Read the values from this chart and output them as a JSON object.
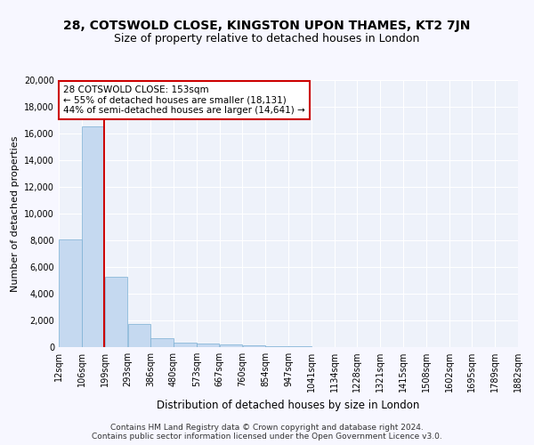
{
  "title": "28, COTSWOLD CLOSE, KINGSTON UPON THAMES, KT2 7JN",
  "subtitle": "Size of property relative to detached houses in London",
  "xlabel": "Distribution of detached houses by size in London",
  "ylabel": "Number of detached properties",
  "bar_color": "#c5d9f0",
  "bar_edge_color": "#7bafd4",
  "bar_values": [
    8100,
    16500,
    5300,
    1750,
    700,
    350,
    260,
    200,
    150,
    100,
    50,
    20,
    10,
    5,
    3,
    2,
    1,
    1,
    1,
    1
  ],
  "bar_labels": [
    "12sqm",
    "106sqm",
    "199sqm",
    "293sqm",
    "386sqm",
    "480sqm",
    "573sqm",
    "667sqm",
    "760sqm",
    "854sqm",
    "947sqm",
    "1041sqm",
    "1134sqm",
    "1228sqm",
    "1321sqm",
    "1415sqm",
    "1508sqm",
    "1602sqm",
    "1695sqm",
    "1789sqm",
    "1882sqm"
  ],
  "ylim": [
    0,
    20000
  ],
  "yticks": [
    0,
    2000,
    4000,
    6000,
    8000,
    10000,
    12000,
    14000,
    16000,
    18000,
    20000
  ],
  "vline_x": 1.47,
  "vline_color": "#cc0000",
  "annotation_text": "28 COTSWOLD CLOSE: 153sqm\n← 55% of detached houses are smaller (18,131)\n44% of semi-detached houses are larger (14,641) →",
  "annotation_box_color": "#ffffff",
  "annotation_box_edge": "#cc0000",
  "footer_text": "Contains HM Land Registry data © Crown copyright and database right 2024.\nContains public sector information licensed under the Open Government Licence v3.0.",
  "bg_color": "#eef2fa",
  "grid_color": "#ffffff",
  "fig_bg_color": "#f7f7ff",
  "title_fontsize": 10,
  "subtitle_fontsize": 9,
  "ylabel_fontsize": 8,
  "xlabel_fontsize": 8.5,
  "tick_fontsize": 7,
  "annotation_fontsize": 7.5,
  "footer_fontsize": 6.5
}
